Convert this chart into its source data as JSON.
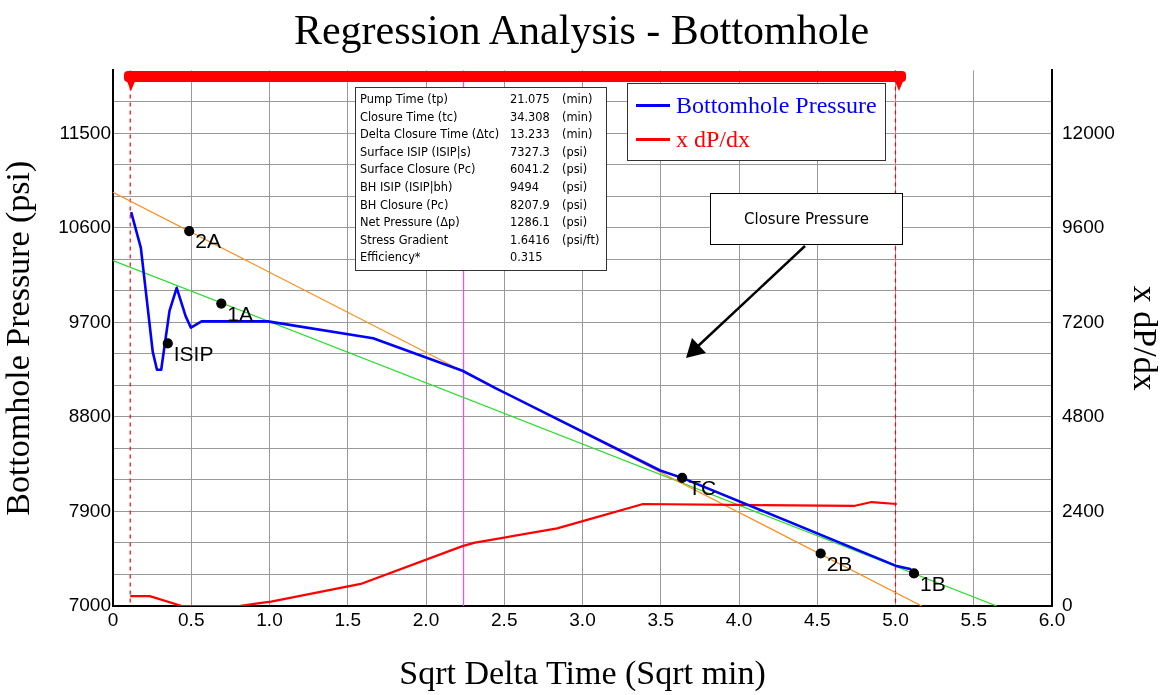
{
  "chart_data": {
    "type": "line",
    "title": "Regression Analysis - Bottomhole",
    "xlabel": "Sqrt Delta Time (Sqrt min)",
    "ylabel": "Bottomhole Pressure (psi)",
    "y2label": "x dP/dx",
    "xlim": [
      0,
      6
    ],
    "xticks": [
      0,
      {
        "value": 0.5,
        "label": "0.5"
      },
      {
        "value": 1,
        "label": "1.0"
      },
      {
        "value": 1.5,
        "label": "1.5"
      },
      {
        "value": 2,
        "label": "2.0"
      },
      {
        "value": 2.5,
        "label": "2.5"
      },
      {
        "value": 3,
        "label": "3.0"
      },
      {
        "value": 3.5,
        "label": "3.5"
      },
      {
        "value": 4,
        "label": "4.0"
      },
      {
        "value": 4.5,
        "label": "4.5"
      },
      {
        "value": 5,
        "label": "5.0"
      },
      {
        "value": 5.5,
        "label": "5.5"
      },
      {
        "value": 6,
        "label": "6.0"
      }
    ],
    "ylim": [
      7000,
      12100
    ],
    "yticks": [
      7000,
      {
        "value": 7300,
        "label": null
      },
      {
        "value": 7600,
        "label": null
      },
      7900,
      {
        "value": 8200,
        "label": null
      },
      {
        "value": 8500,
        "label": null
      },
      8800,
      {
        "value": 9100,
        "label": null
      },
      {
        "value": 9400,
        "label": null
      },
      9700,
      {
        "value": 10000,
        "label": null
      },
      {
        "value": 10300,
        "label": null
      },
      10600,
      {
        "value": 10900,
        "label": null
      },
      {
        "value": 11200,
        "label": null
      },
      11500,
      {
        "value": 11800,
        "label": null
      }
    ],
    "y2lim": [
      0,
      13600
    ],
    "y2ticks": [
      0,
      2400,
      4800,
      7200,
      9600,
      12000
    ],
    "grid": true,
    "legend": "top right",
    "series": [
      {
        "name": "Bottomhole Pressure",
        "type": "line",
        "color": "#0000ff",
        "x": [
          0.116,
          0.178,
          0.254,
          0.281,
          0.308,
          0.361,
          0.407,
          0.464,
          0.498,
          0.566,
          0.989,
          1.662,
          2.233,
          2.45,
          3.496,
          3.637,
          5.008,
          5.1
        ],
        "values": [
          10750,
          10410,
          9420,
          9250,
          9250,
          9810,
          10030,
          9760,
          9650,
          9710,
          9710,
          9550,
          9240,
          9070,
          8290,
          8220,
          7380,
          7350
        ]
      },
      {
        "name": "x dP/dx",
        "type": "line",
        "color": "#ff0000",
        "axis": "y2",
        "x": [
          0.11,
          0.235,
          0.44,
          0.806,
          1.01,
          1.583,
          2.233,
          2.313,
          2.838,
          3.387,
          4.117,
          4.734,
          4.848,
          5.008
        ],
        "values": [
          250,
          250,
          0,
          0,
          110,
          560,
          1520,
          1610,
          1970,
          2590,
          2560,
          2540,
          2640,
          2590
        ]
      },
      {
        "type": "line",
        "color": "#ff8c1a",
        "x": [
          0,
          5.168
        ],
        "values": [
          10940,
          7000
        ]
      },
      {
        "type": "line",
        "color": "#22dd22",
        "x": [
          0,
          5.647
        ],
        "values": [
          10290,
          7000
        ]
      },
      {
        "type": "scatter",
        "color": "#000000",
        "marker": "circle",
        "x": [
          0.487,
          0.692,
          0.35,
          3.637,
          4.522,
          5.118
        ],
        "values": [
          10570,
          9880,
          9500,
          8220,
          7500,
          7310
        ]
      }
    ],
    "ref_lines": [
      {
        "axis": "x",
        "value": 0.11,
        "color": "#ff0000",
        "line_style": "dashed"
      },
      {
        "axis": "x",
        "value": 5.0,
        "color": "#ff0000",
        "line_style": "dashed"
      },
      {
        "axis": "x",
        "value": 2.24,
        "color": "#ff44ff",
        "line_style": "solid"
      }
    ],
    "annotations": [
      {
        "text": "2A",
        "x": 0.487,
        "y": 10570
      },
      {
        "text": "1A",
        "x": 0.692,
        "y": 9880
      },
      {
        "text": "ISIP",
        "x": 0.35,
        "y": 9500
      },
      {
        "text": "TC",
        "x": 3.637,
        "y": 8220
      },
      {
        "text": "2B",
        "x": 4.522,
        "y": 7500
      },
      {
        "text": "1B",
        "x": 5.118,
        "y": 7310
      },
      "Pump Time (tp)\t21.075\t(min)",
      "Closure Time (tc)\t34.308\t(min)",
      "Delta Closure Time (Δtc)\t13.233\t(min)",
      "Surface ISIP (ISIP|s)\t7327.3\t(psi)",
      "Surface Closure (Pc)\t6041.2\t(psi)",
      "BH ISIP (ISIP|bh)\t9494\t(psi)",
      "BH Closure (Pc)\t8207.9\t(psi)",
      "Net Pressure (Δp)\t1286.1\t(psi)",
      "Stress Gradient\t1.6416\t(psi/ft)",
      "Efficiency*\t0.315",
      "Closure Pressure"
    ]
  }
}
